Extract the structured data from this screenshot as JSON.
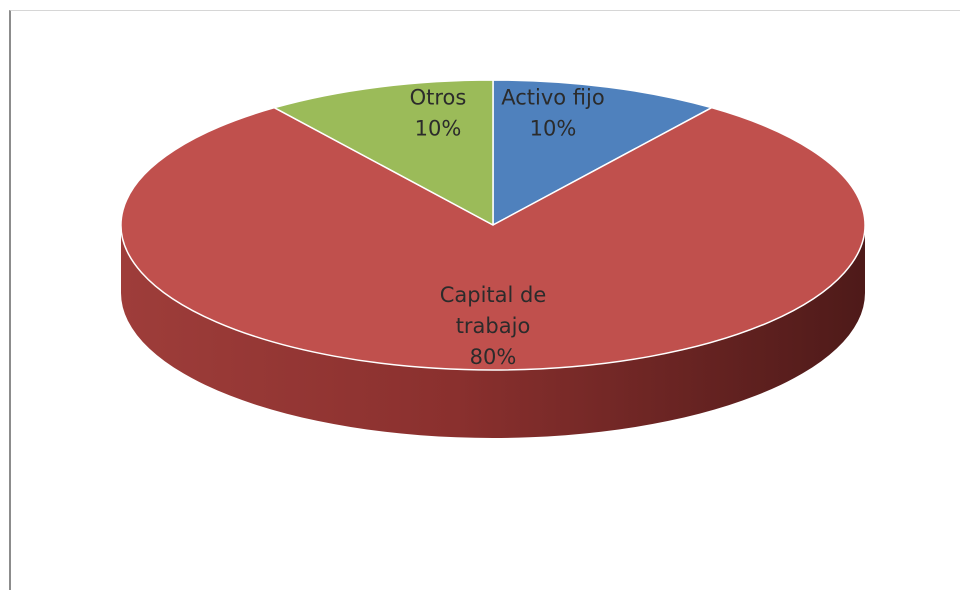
{
  "chart_data": {
    "type": "pie",
    "style": "3d",
    "slices": [
      {
        "label": "Activo fijo",
        "percent_label": "10%",
        "value": 10,
        "color": "#4f81bd"
      },
      {
        "label": "Capital de trabajo",
        "percent_label": "80%",
        "value": 80,
        "color": "#c0504d"
      },
      {
        "label": "Otros",
        "percent_label": "10%",
        "value": 10,
        "color": "#9bbb59"
      }
    ],
    "legend": "none",
    "label_position": "inside"
  }
}
